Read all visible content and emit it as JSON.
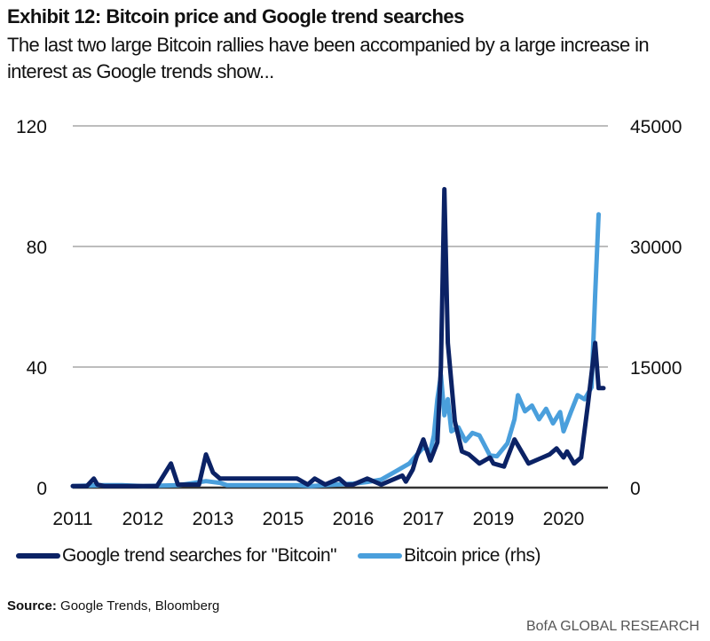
{
  "header": {
    "title": "Exhibit 12: Bitcoin price and Google trend searches",
    "subtitle": "The last two large Bitcoin rallies have been accompanied by a large increase in interest as Google trends show..."
  },
  "footer": {
    "source_label": "Source:",
    "source_text": "Google Trends, Bloomberg",
    "brand": "BofA GLOBAL RESEARCH"
  },
  "colors": {
    "trend": "#0b2265",
    "price": "#4a9fdc",
    "grid": "#bdbdbd",
    "axis": "#333333"
  },
  "chart_data": {
    "type": "line",
    "title": "Exhibit 12: Bitcoin price and Google trend searches",
    "xlabel": "",
    "ylabel": "",
    "x_tick_labels": [
      "2011",
      "2012",
      "2013",
      "2015",
      "2016",
      "2017",
      "2019",
      "2020"
    ],
    "x_range": [
      0,
      7.6
    ],
    "y_left": {
      "ticks": [
        0,
        40,
        80,
        120
      ],
      "ylim": [
        0,
        120
      ]
    },
    "y_right": {
      "ticks": [
        0,
        15000,
        30000,
        45000
      ],
      "ylim": [
        0,
        45000
      ]
    },
    "grid": true,
    "legend_position": "bottom",
    "series": [
      {
        "name": "Google trend searches for \"Bitcoin\"",
        "axis": "left",
        "x": [
          0,
          0.2,
          0.3,
          0.35,
          0.45,
          0.6,
          0.8,
          1.0,
          1.2,
          1.4,
          1.5,
          1.7,
          1.8,
          1.9,
          2.0,
          2.1,
          2.15,
          2.25,
          2.3,
          2.5,
          2.8,
          3.0,
          3.2,
          3.35,
          3.45,
          3.6,
          3.8,
          3.9,
          4.0,
          4.2,
          4.4,
          4.6,
          4.7,
          4.75,
          4.85,
          4.9,
          5.0,
          5.1,
          5.15,
          5.2,
          5.25,
          5.3,
          5.35,
          5.45,
          5.55,
          5.65,
          5.8,
          5.95,
          6.0,
          6.15,
          6.3,
          6.5,
          6.7,
          6.8,
          6.9,
          7.0,
          7.05,
          7.15,
          7.25,
          7.35,
          7.45,
          7.5,
          7.57
        ],
        "values": [
          0.5,
          0.5,
          3,
          1,
          0.5,
          0.5,
          0.5,
          0.5,
          0.5,
          8,
          1,
          1,
          1,
          11,
          5,
          3,
          3,
          3,
          3,
          3,
          3,
          3,
          3,
          1,
          3,
          1,
          3,
          1,
          1,
          3,
          1,
          3,
          4,
          2,
          6,
          10,
          16,
          9,
          12,
          15,
          40,
          99,
          48,
          22,
          12,
          11,
          8,
          10,
          8,
          7,
          16,
          8,
          10,
          11,
          13,
          10,
          12,
          8,
          10,
          28,
          48,
          33,
          33
        ]
      },
      {
        "name": "Bitcoin price (rhs)",
        "axis": "right",
        "x": [
          0,
          0.4,
          0.7,
          1.0,
          1.5,
          1.9,
          2.0,
          2.1,
          2.2,
          2.3,
          2.5,
          3.0,
          3.2,
          3.4,
          3.6,
          3.8,
          4.0,
          4.2,
          4.4,
          4.6,
          4.8,
          4.9,
          5.0,
          5.1,
          5.15,
          5.2,
          5.25,
          5.3,
          5.35,
          5.4,
          5.5,
          5.6,
          5.7,
          5.8,
          5.95,
          6.05,
          6.2,
          6.3,
          6.35,
          6.45,
          6.55,
          6.65,
          6.75,
          6.85,
          6.95,
          7.0,
          7.1,
          7.2,
          7.3,
          7.4,
          7.45,
          7.5
        ],
        "values": [
          200,
          300,
          300,
          200,
          300,
          800,
          700,
          600,
          300,
          300,
          300,
          300,
          300,
          200,
          300,
          400,
          500,
          700,
          1000,
          2000,
          3000,
          4000,
          5000,
          4500,
          6500,
          11000,
          14000,
          9000,
          11000,
          7000,
          7500,
          5800,
          6800,
          6500,
          4000,
          3900,
          5500,
          8500,
          11500,
          9500,
          10200,
          8500,
          9800,
          8000,
          9400,
          7000,
          9300,
          11500,
          11000,
          12500,
          24000,
          34000
        ]
      }
    ]
  }
}
